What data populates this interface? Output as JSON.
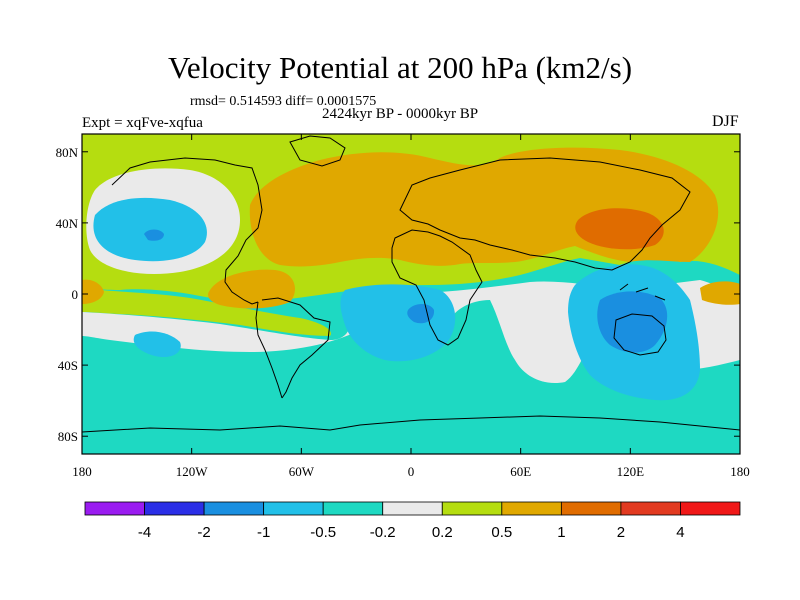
{
  "title": "Velocity Potential at 200 hPa (km2/s)",
  "stats_text": "rmsd= 0.514593 diff= 0.0001575",
  "period_text": "2424kyr BP - 0000kyr BP",
  "experiment_text": "Expt = xqFve-xqfua",
  "season": "DJF",
  "chart_data": {
    "type": "heatmap",
    "title": "Velocity Potential at 200 hPa (km2/s)",
    "xlabel": "",
    "ylabel": "",
    "xlim": [
      -180,
      180
    ],
    "ylim": [
      -90,
      90
    ],
    "x_ticks": [
      {
        "value": -180,
        "label": "180"
      },
      {
        "value": -120,
        "label": "120W"
      },
      {
        "value": -60,
        "label": "60W"
      },
      {
        "value": 0,
        "label": "0"
      },
      {
        "value": 60,
        "label": "60E"
      },
      {
        "value": 120,
        "label": "120E"
      },
      {
        "value": 180,
        "label": "180"
      }
    ],
    "y_ticks": [
      {
        "value": 80,
        "label": "80N"
      },
      {
        "value": 40,
        "label": "40N"
      },
      {
        "value": 0,
        "label": "0"
      },
      {
        "value": -40,
        "label": "40S"
      },
      {
        "value": -80,
        "label": "80S"
      }
    ],
    "colorbar": {
      "levels": [
        "-4",
        "-2",
        "-1",
        "-0.5",
        "-0.2",
        "0.2",
        "0.5",
        "1",
        "2",
        "4"
      ],
      "colors": [
        "#9a1cf0",
        "#2b2ee6",
        "#1a8fe0",
        "#22c0e8",
        "#1ed9c2",
        "#eaeaea",
        "#b5dd10",
        "#e0a800",
        "#e06c00",
        "#e23a20",
        "#f01818"
      ]
    },
    "field": {
      "background": "#1ed9c2",
      "regions": [
        {
          "label": "NH midlatitude positive band",
          "color": "#b5dd10",
          "lon": [
            -180,
            180
          ],
          "lat": [
            2,
            90
          ]
        },
        {
          "label": "Eurasia / Africa positive",
          "color": "#e0a800",
          "lon": [
            -85,
            140
          ],
          "lat": [
            5,
            82
          ]
        },
        {
          "label": "East Asia maximum",
          "color": "#e06c00",
          "lon": [
            100,
            150
          ],
          "lat": [
            20,
            50
          ]
        },
        {
          "label": "North Pacific minimum",
          "color": "#22c0e8",
          "lon": [
            -180,
            -125
          ],
          "lat": [
            10,
            65
          ]
        },
        {
          "label": "South Atlantic / Africa minimum",
          "color": "#22c0e8",
          "lon": [
            -35,
            30
          ],
          "lat": [
            -45,
            0
          ]
        },
        {
          "label": "Maritime continent / Australia minimum",
          "color": "#22c0e8",
          "lon": [
            85,
            165
          ],
          "lat": [
            -50,
            15
          ]
        },
        {
          "label": "Maritime continent core",
          "color": "#1a8fe0",
          "lon": [
            100,
            135
          ],
          "lat": [
            -25,
            5
          ]
        }
      ]
    }
  }
}
